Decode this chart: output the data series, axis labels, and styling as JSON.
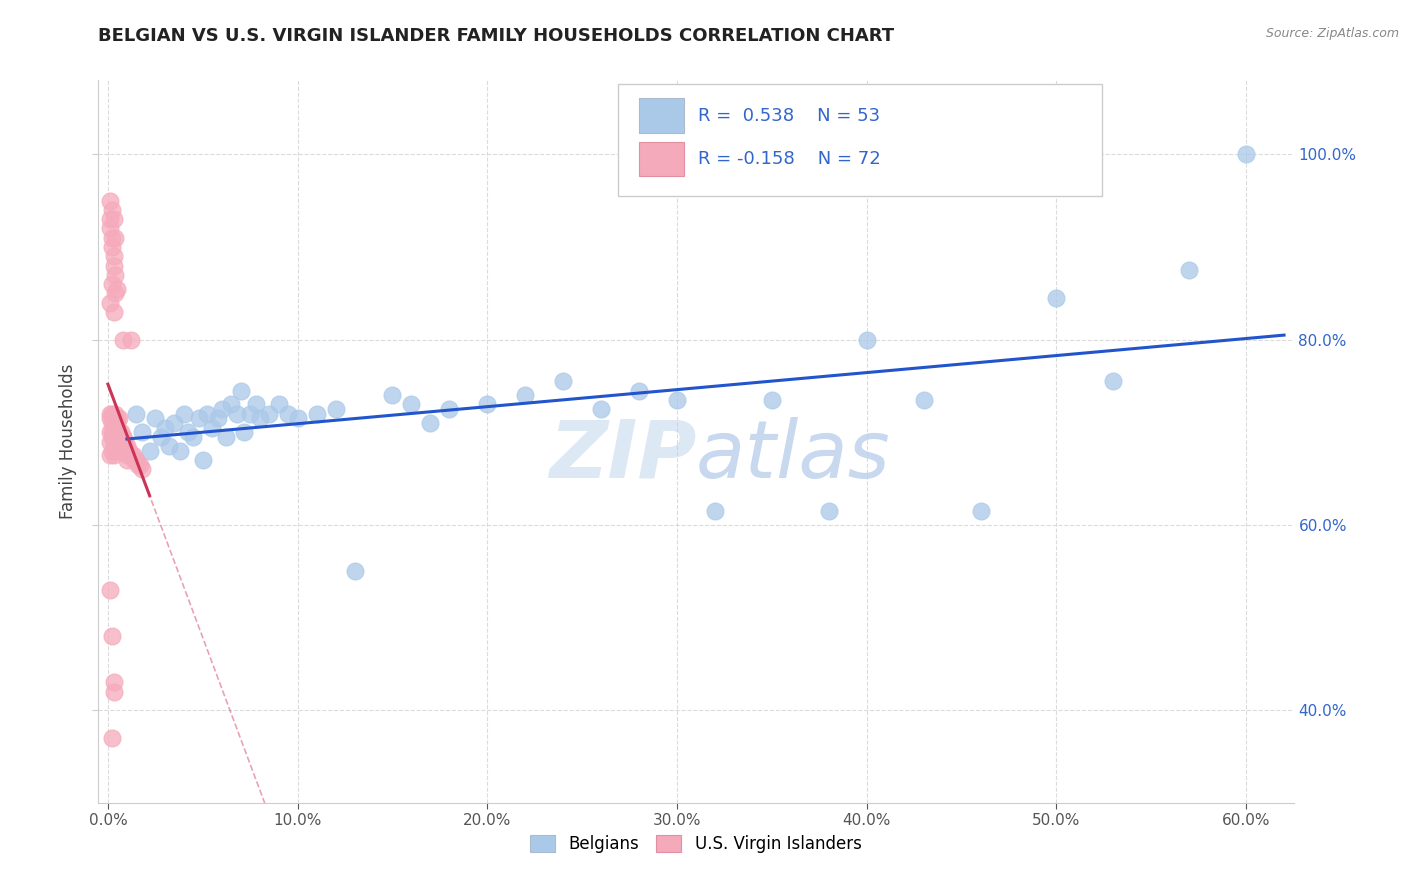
{
  "title": "BELGIAN VS U.S. VIRGIN ISLANDER FAMILY HOUSEHOLDS CORRELATION CHART",
  "source": "Source: ZipAtlas.com",
  "ylabel": "Family Households",
  "x_tick_labels": [
    "0.0%",
    "10.0%",
    "20.0%",
    "30.0%",
    "40.0%",
    "50.0%",
    "60.0%"
  ],
  "x_tick_values": [
    0.0,
    0.1,
    0.2,
    0.3,
    0.4,
    0.5,
    0.6
  ],
  "y_tick_labels": [
    "40.0%",
    "60.0%",
    "80.0%",
    "100.0%"
  ],
  "y_tick_values": [
    0.4,
    0.6,
    0.8,
    1.0
  ],
  "xlim": [
    -0.005,
    0.625
  ],
  "ylim": [
    0.3,
    1.08
  ],
  "R_blue": 0.538,
  "N_blue": 53,
  "R_pink": -0.158,
  "N_pink": 72,
  "blue_color": "#aac8e8",
  "blue_line_color": "#2255cc",
  "pink_color": "#f5aabb",
  "pink_line_color": "#cc3355",
  "grid_color": "#cccccc",
  "background_color": "#ffffff",
  "title_color": "#222222",
  "source_color": "#888888",
  "legend_text_color": "#3366cc",
  "watermark_color": "#dde8f5",
  "blue_scatter_x": [
    0.015,
    0.018,
    0.022,
    0.025,
    0.028,
    0.03,
    0.032,
    0.035,
    0.038,
    0.04,
    0.042,
    0.045,
    0.048,
    0.05,
    0.052,
    0.055,
    0.058,
    0.06,
    0.062,
    0.065,
    0.068,
    0.07,
    0.072,
    0.075,
    0.078,
    0.08,
    0.085,
    0.09,
    0.095,
    0.1,
    0.11,
    0.12,
    0.13,
    0.15,
    0.16,
    0.17,
    0.18,
    0.2,
    0.22,
    0.24,
    0.26,
    0.28,
    0.3,
    0.32,
    0.35,
    0.38,
    0.4,
    0.43,
    0.46,
    0.5,
    0.53,
    0.57,
    0.6
  ],
  "blue_scatter_y": [
    0.72,
    0.7,
    0.68,
    0.715,
    0.695,
    0.705,
    0.685,
    0.71,
    0.68,
    0.72,
    0.7,
    0.695,
    0.715,
    0.67,
    0.72,
    0.705,
    0.715,
    0.725,
    0.695,
    0.73,
    0.72,
    0.745,
    0.7,
    0.72,
    0.73,
    0.715,
    0.72,
    0.73,
    0.72,
    0.715,
    0.72,
    0.725,
    0.55,
    0.74,
    0.73,
    0.71,
    0.725,
    0.73,
    0.74,
    0.755,
    0.725,
    0.745,
    0.735,
    0.615,
    0.735,
    0.615,
    0.8,
    0.735,
    0.615,
    0.845,
    0.755,
    0.875,
    1.0
  ],
  "pink_scatter_x": [
    0.001,
    0.001,
    0.001,
    0.001,
    0.001,
    0.002,
    0.002,
    0.002,
    0.002,
    0.002,
    0.003,
    0.003,
    0.003,
    0.003,
    0.003,
    0.004,
    0.004,
    0.004,
    0.004,
    0.005,
    0.005,
    0.005,
    0.006,
    0.006,
    0.006,
    0.007,
    0.007,
    0.008,
    0.008,
    0.009,
    0.009,
    0.01,
    0.01,
    0.011,
    0.012,
    0.013,
    0.014,
    0.015,
    0.016,
    0.017,
    0.018,
    0.001,
    0.001,
    0.002,
    0.002,
    0.003,
    0.003,
    0.004,
    0.004,
    0.005,
    0.001,
    0.001,
    0.002,
    0.002,
    0.003,
    0.003,
    0.004,
    0.001,
    0.002,
    0.003,
    0.006,
    0.007,
    0.008,
    0.009,
    0.01,
    0.004,
    0.005,
    0.006,
    0.002,
    0.003,
    0.008,
    0.012
  ],
  "pink_scatter_y": [
    0.715,
    0.7,
    0.69,
    0.675,
    0.72,
    0.71,
    0.695,
    0.68,
    0.72,
    0.7,
    0.7,
    0.69,
    0.675,
    0.715,
    0.7,
    0.695,
    0.715,
    0.68,
    0.7,
    0.715,
    0.695,
    0.7,
    0.7,
    0.695,
    0.685,
    0.695,
    0.685,
    0.695,
    0.685,
    0.69,
    0.68,
    0.685,
    0.675,
    0.68,
    0.675,
    0.675,
    0.67,
    0.67,
    0.665,
    0.665,
    0.66,
    0.84,
    0.92,
    0.86,
    0.9,
    0.83,
    0.88,
    0.85,
    0.87,
    0.855,
    0.93,
    0.95,
    0.91,
    0.94,
    0.89,
    0.93,
    0.91,
    0.53,
    0.48,
    0.43,
    0.715,
    0.7,
    0.695,
    0.685,
    0.67,
    0.72,
    0.71,
    0.7,
    0.37,
    0.42,
    0.8,
    0.8
  ]
}
